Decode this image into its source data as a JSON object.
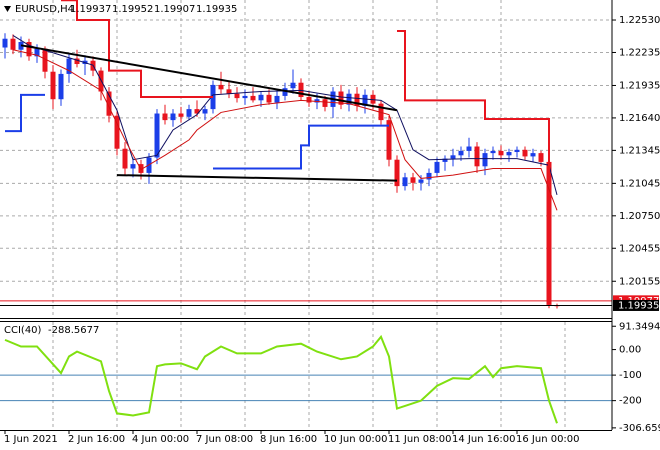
{
  "chart_data": [
    {
      "type": "candlestick",
      "title": "EURUSD,H4",
      "categories": [
        "1 Jun 2021",
        null,
        null,
        null,
        null,
        null,
        null,
        null,
        "2 Jun 16:00",
        null,
        null,
        null,
        null,
        null,
        null,
        null,
        "4 Jun 00:00",
        null,
        null,
        null,
        null,
        null,
        null,
        null,
        "7 Jun 08:00",
        null,
        null,
        null,
        null,
        null,
        null,
        null,
        "8 Jun 16:00",
        null,
        null,
        null,
        null,
        null,
        null,
        null,
        "10 Jun 00:00",
        null,
        null,
        null,
        null,
        null,
        null,
        null,
        "11 Jun 08:00",
        null,
        null,
        null,
        null,
        null,
        null,
        null,
        "14 Jun 16:00",
        null,
        null,
        null,
        null,
        null,
        null,
        null,
        "16 Jun 00:00",
        null,
        null,
        null,
        null,
        null
      ],
      "open": [
        1.2228,
        1.2236,
        1.2226,
        1.2233,
        1.222,
        1.2227,
        1.2206,
        1.2181,
        1.2204,
        1.2218,
        1.2213,
        1.2216,
        1.2207,
        1.2188,
        1.2166,
        1.2136,
        1.2118,
        1.2122,
        1.2114,
        1.2128,
        1.2168,
        1.2162,
        1.2168,
        1.2165,
        1.2172,
        1.2168,
        1.2172,
        1.2194,
        1.219,
        1.2186,
        1.2182,
        1.2184,
        1.218,
        1.2185,
        1.2178,
        1.2184,
        1.2191,
        1.2196,
        1.2183,
        1.2178,
        1.2181,
        1.2174,
        1.2188,
        1.2176,
        1.2186,
        1.2175,
        1.2185,
        1.2177,
        1.2162,
        1.2126,
        1.2102,
        1.211,
        1.2105,
        1.2108,
        1.2114,
        1.2124,
        1.2127,
        1.213,
        1.2134,
        1.2138,
        1.212,
        1.2132,
        1.2134,
        1.213,
        1.2133,
        1.2135,
        1.2129,
        1.2132,
        1.2124,
        1.19937
      ],
      "high": [
        1.2241,
        1.224,
        1.2238,
        1.2236,
        1.2231,
        1.2229,
        1.2212,
        1.2208,
        1.2222,
        1.2226,
        1.2221,
        1.222,
        1.221,
        1.2192,
        1.217,
        1.2142,
        1.2128,
        1.2126,
        1.2132,
        1.2172,
        1.2176,
        1.2172,
        1.2174,
        1.2176,
        1.218,
        1.2175,
        1.2198,
        1.2206,
        1.2198,
        1.2192,
        1.219,
        1.2192,
        1.2188,
        1.219,
        1.2188,
        1.2196,
        1.2208,
        1.22,
        1.2188,
        1.2186,
        1.2184,
        1.2192,
        1.2194,
        1.219,
        1.2192,
        1.219,
        1.2189,
        1.218,
        1.2166,
        1.213,
        1.2114,
        1.2114,
        1.2112,
        1.2118,
        1.2128,
        1.213,
        1.2136,
        1.2138,
        1.2146,
        1.2142,
        1.2136,
        1.2138,
        1.2139,
        1.2136,
        1.2138,
        1.2138,
        1.2136,
        1.2134,
        1.2126,
        1.19952
      ],
      "low": [
        1.2218,
        1.2222,
        1.2219,
        1.2216,
        1.2214,
        1.22,
        1.2172,
        1.2175,
        1.2196,
        1.221,
        1.2203,
        1.2202,
        1.218,
        1.216,
        1.213,
        1.2112,
        1.211,
        1.2108,
        1.2104,
        1.2122,
        1.2158,
        1.2156,
        1.216,
        1.2162,
        1.2165,
        1.2162,
        1.2168,
        1.2186,
        1.2182,
        1.2178,
        1.2176,
        1.2178,
        1.2174,
        1.2176,
        1.2172,
        1.218,
        1.2186,
        1.218,
        1.2174,
        1.2172,
        1.217,
        1.2164,
        1.2172,
        1.217,
        1.217,
        1.2168,
        1.2172,
        1.2158,
        1.212,
        1.2096,
        1.2098,
        1.2098,
        1.2098,
        1.2102,
        1.211,
        1.2116,
        1.212,
        1.2125,
        1.2128,
        1.2114,
        1.2112,
        1.2126,
        1.2126,
        1.2124,
        1.2128,
        1.2126,
        1.2124,
        1.212,
        1.1991,
        1.19907
      ],
      "close": [
        1.2236,
        1.2226,
        1.2233,
        1.222,
        1.2227,
        1.2206,
        1.2181,
        1.2204,
        1.2218,
        1.2213,
        1.2216,
        1.2207,
        1.2188,
        1.2166,
        1.2136,
        1.2118,
        1.2122,
        1.2114,
        1.2128,
        1.2168,
        1.2162,
        1.2168,
        1.2165,
        1.2172,
        1.2168,
        1.2172,
        1.2194,
        1.219,
        1.2186,
        1.2182,
        1.2184,
        1.218,
        1.2185,
        1.2178,
        1.2184,
        1.2191,
        1.2196,
        1.2183,
        1.2178,
        1.2181,
        1.2174,
        1.2188,
        1.2176,
        1.2186,
        1.2175,
        1.2185,
        1.2177,
        1.2162,
        1.2126,
        1.2102,
        1.211,
        1.2105,
        1.2108,
        1.2114,
        1.2124,
        1.2127,
        1.213,
        1.2134,
        1.2138,
        1.212,
        1.2132,
        1.2134,
        1.213,
        1.2133,
        1.2135,
        1.2129,
        1.2132,
        1.2124,
        1.1994,
        1.19935
      ],
      "up_color": "#1b3ee8",
      "down_color": "#e8141e",
      "ylim": [
        1.19821,
        1.22712
      ],
      "yticks": [
        {
          "value": 1.2253,
          "label": "1.22530"
        },
        {
          "value": 1.22235,
          "label": "1.22235"
        },
        {
          "value": 1.21935,
          "label": "1.21935"
        },
        {
          "value": 1.2164,
          "label": "1.21640"
        },
        {
          "value": 1.21345,
          "label": "1.21345"
        },
        {
          "value": 1.21045,
          "label": "1.21045"
        },
        {
          "value": 1.2075,
          "label": "1.20750"
        },
        {
          "value": 1.20455,
          "label": "1.20455"
        },
        {
          "value": 1.20155,
          "label": "1.20155"
        }
      ],
      "grid": true,
      "price_lines": [
        {
          "value": 1.19977,
          "color": "#e8141e"
        },
        {
          "value": 1.19935,
          "color": "#000000"
        }
      ],
      "overlays": [
        {
          "color": "#101060",
          "width": 1,
          "x": [
            1,
            3,
            7,
            11,
            14,
            16,
            19,
            21,
            24,
            26,
            32,
            37,
            42,
            47,
            49,
            51,
            53,
            58,
            64,
            68,
            69
          ],
          "values": [
            1.2239,
            1.223,
            1.2221,
            1.2212,
            1.2171,
            1.2126,
            1.213,
            1.2153,
            1.2167,
            1.2185,
            1.2188,
            1.2189,
            1.2183,
            1.218,
            1.2171,
            1.2135,
            1.2126,
            1.2127,
            1.2127,
            1.2121,
            1.2094
          ]
        },
        {
          "color": "#d01010",
          "width": 1,
          "x": [
            1,
            4,
            8,
            12,
            15,
            17,
            20,
            23,
            24,
            27,
            32,
            37,
            43,
            48,
            50,
            52,
            56,
            61,
            67,
            69
          ],
          "values": [
            1.2226,
            1.2221,
            1.2207,
            1.2189,
            1.2144,
            1.2117,
            1.213,
            1.2144,
            1.2153,
            1.2169,
            1.2176,
            1.218,
            1.2177,
            1.2167,
            1.2126,
            1.2109,
            1.2112,
            1.2118,
            1.2118,
            1.208
          ]
        },
        {
          "color": "#e8141e",
          "width": 2,
          "step": true,
          "x": [
            7,
            9,
            13,
            17,
            26,
            null,
            49,
            50,
            60,
            67,
            68
          ],
          "values": [
            1.2271,
            1.2253,
            1.2207,
            1.2183,
            1.2183,
            null,
            1.2243,
            1.218,
            1.2163,
            1.2163,
            1.2106
          ]
        },
        {
          "color": "#1b3ee8",
          "width": 2,
          "step": true,
          "x": [
            0,
            2,
            5,
            null,
            26,
            36,
            37,
            38,
            48
          ],
          "values": [
            1.2152,
            1.2185,
            1.2185,
            null,
            1.2118,
            1.2118,
            1.2139,
            1.2157,
            1.2157
          ]
        },
        {
          "color": "#000000",
          "width": 2,
          "x": [
            2,
            49
          ],
          "values": [
            1.223,
            1.2171
          ]
        },
        {
          "color": "#000000",
          "width": 2,
          "x": [
            14,
            49
          ],
          "values": [
            1.2112,
            1.2107
          ]
        }
      ]
    },
    {
      "type": "line",
      "title": "CCI(40)",
      "color": "#80e010",
      "x": [
        0,
        2,
        4,
        7,
        8,
        9,
        12,
        13,
        14,
        16,
        18,
        19,
        20,
        22,
        24,
        25,
        27,
        29,
        32,
        34,
        37,
        39,
        42,
        44,
        46,
        47,
        48,
        49,
        52,
        54,
        56,
        58,
        60,
        61,
        62,
        64,
        67,
        68,
        69
      ],
      "values": [
        38,
        12,
        12,
        -92,
        -27,
        -8,
        -46,
        -162,
        -250,
        -258,
        -246,
        -65,
        -58,
        -54,
        -77,
        -27,
        12,
        -15,
        -15,
        12,
        23,
        -8,
        -38,
        -27,
        12,
        50,
        -27,
        -231,
        -200,
        -142,
        -112,
        -115,
        -65,
        -108,
        -73,
        -65,
        -73,
        -200,
        -288.5677
      ],
      "ylim": [
        -315,
        108
      ],
      "yticks": [
        91.3494,
        {
          "value": 0,
          "label": "0.00"
        },
        -100,
        -200,
        -306.659
      ],
      "levels": [
        -100,
        -200
      ],
      "level_color": "#4682b4"
    }
  ]
}
